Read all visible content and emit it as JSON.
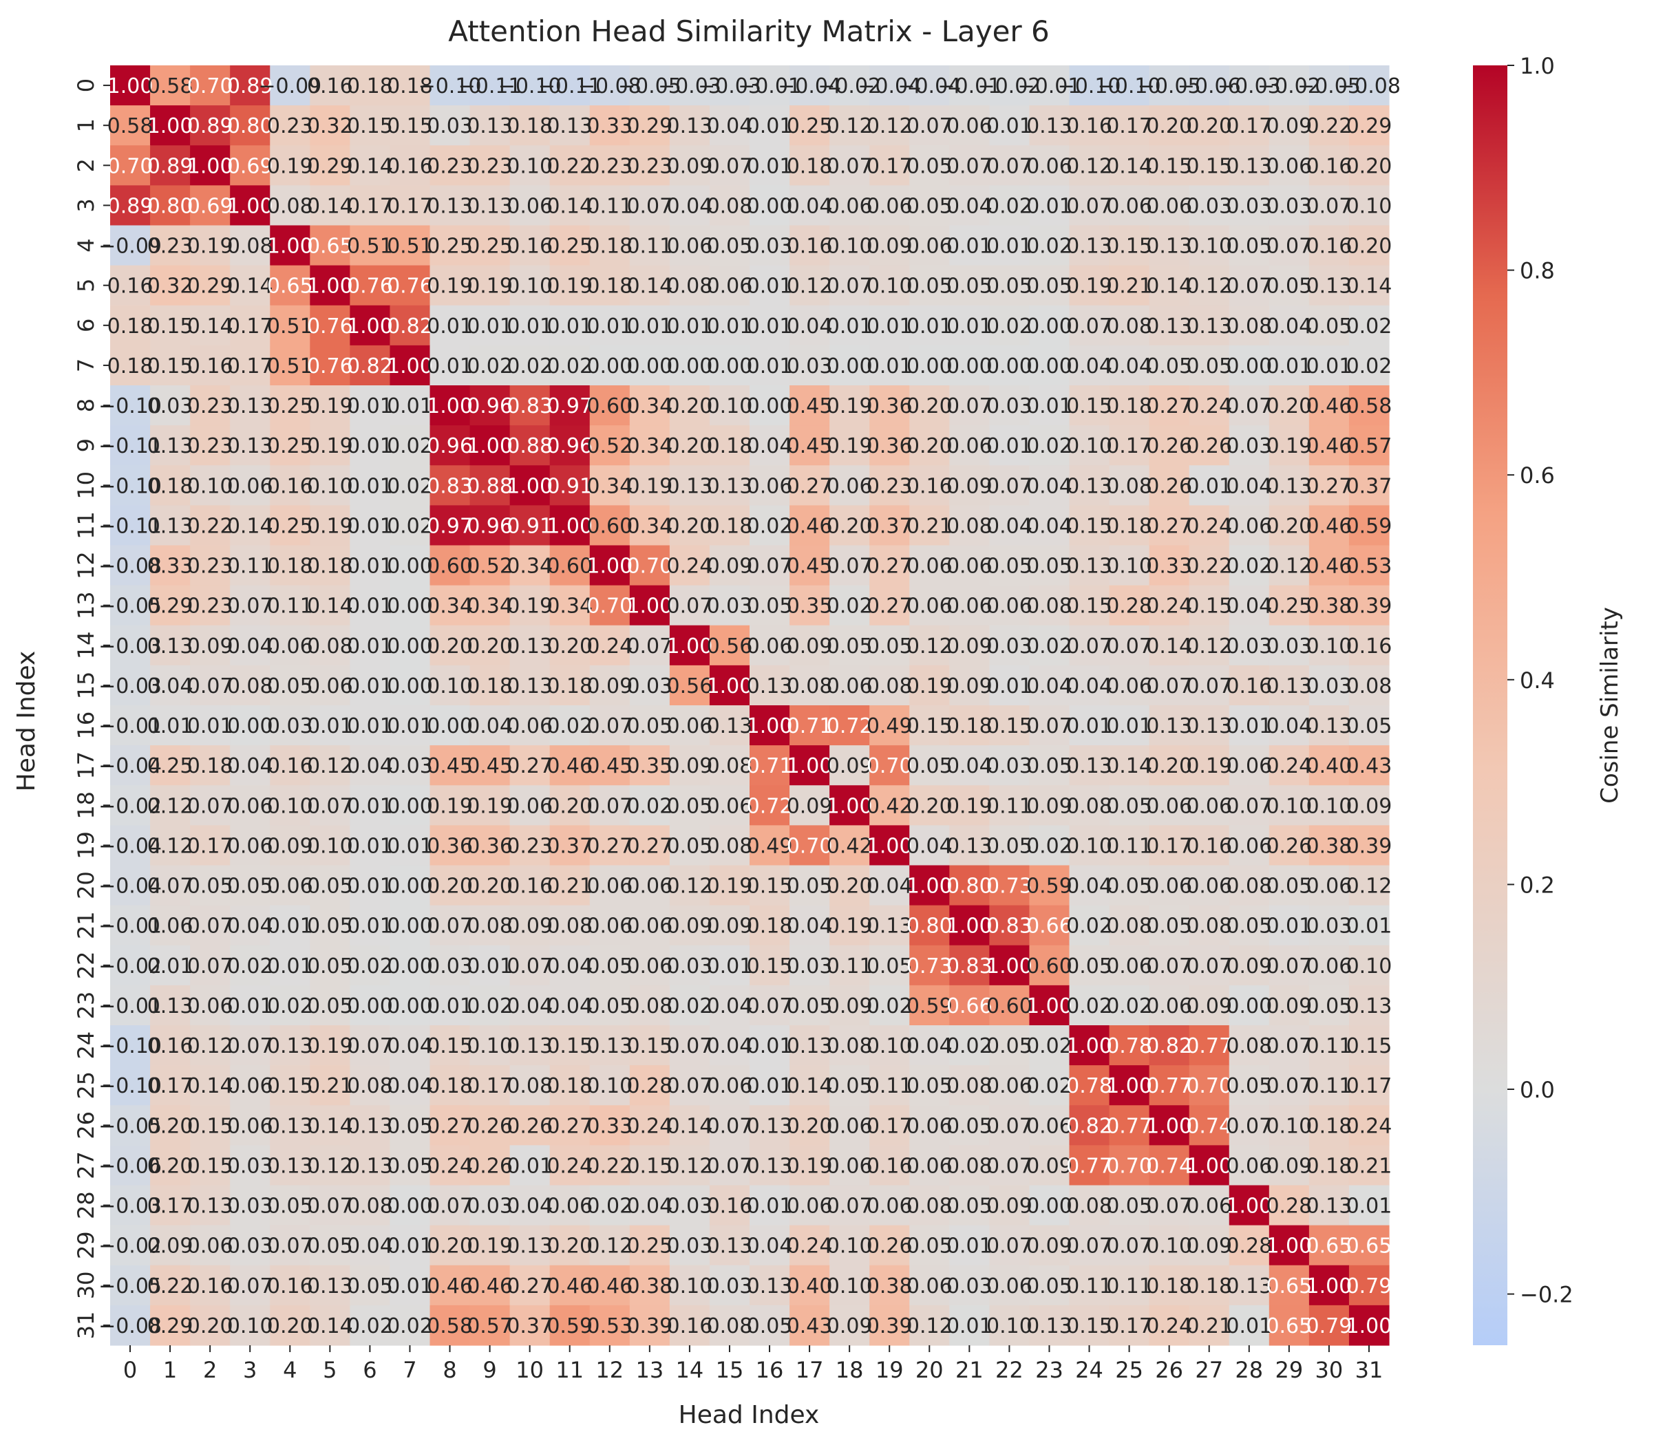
{
  "chart_data": {
    "type": "heatmap",
    "title": "Attention Head Similarity Matrix - Layer 6",
    "xlabel": "Head Index",
    "ylabel": "Head Index",
    "x_categories": [
      "0",
      "1",
      "2",
      "3",
      "4",
      "5",
      "6",
      "7",
      "8",
      "9",
      "10",
      "11",
      "12",
      "13",
      "14",
      "15",
      "16",
      "17",
      "18",
      "19",
      "20",
      "21",
      "22",
      "23",
      "24",
      "25",
      "26",
      "27",
      "28",
      "29",
      "30",
      "31"
    ],
    "y_categories": [
      "0",
      "1",
      "2",
      "3",
      "4",
      "5",
      "6",
      "7",
      "8",
      "9",
      "10",
      "11",
      "12",
      "13",
      "14",
      "15",
      "16",
      "17",
      "18",
      "19",
      "20",
      "21",
      "22",
      "23",
      "24",
      "25",
      "26",
      "27",
      "28",
      "29",
      "30",
      "31"
    ],
    "colorbar": {
      "label": "Cosine Similarity",
      "range": [
        -0.25,
        1.0
      ],
      "ticks": [
        "1.0",
        "0.8",
        "0.6",
        "0.4",
        "0.2",
        "0.0",
        "−0.2"
      ],
      "tick_values": [
        1.0,
        0.8,
        0.6,
        0.4,
        0.2,
        0.0,
        -0.2
      ],
      "colormap": "coolwarm",
      "color_low": "#b5cdf8",
      "color_mid": "#dcdddd",
      "color_high": "#b40426"
    },
    "values": [
      [
        1.0,
        0.58,
        0.7,
        0.89,
        -0.09,
        0.16,
        0.18,
        0.18,
        -0.1,
        -0.11,
        -0.1,
        -0.11,
        -0.08,
        -0.05,
        -0.03,
        -0.03,
        -0.01,
        -0.04,
        -0.02,
        -0.04,
        -0.04,
        -0.01,
        -0.02,
        -0.01,
        -0.1,
        -0.1,
        -0.05,
        -0.06,
        -0.03,
        -0.02,
        -0.05,
        -0.076
      ],
      [
        0.58,
        1.0,
        0.89,
        0.8,
        0.23,
        0.32,
        0.15,
        0.15,
        0.03,
        0.13,
        0.18,
        0.13,
        0.33,
        0.29,
        0.13,
        0.04,
        0.01,
        0.25,
        0.12,
        0.12,
        0.07,
        0.06,
        0.01,
        0.13,
        0.16,
        0.17,
        0.2,
        0.2,
        0.17,
        0.09,
        0.22,
        0.292
      ],
      [
        0.7,
        0.89,
        1.0,
        0.69,
        0.19,
        0.29,
        0.14,
        0.16,
        0.23,
        0.23,
        0.1,
        0.22,
        0.23,
        0.23,
        0.09,
        0.07,
        0.01,
        0.18,
        0.07,
        0.17,
        0.05,
        0.07,
        0.07,
        0.06,
        0.12,
        0.14,
        0.15,
        0.15,
        0.13,
        0.06,
        0.16,
        0.201
      ],
      [
        0.89,
        0.8,
        0.69,
        1.0,
        0.08,
        0.14,
        0.17,
        0.17,
        0.13,
        0.13,
        0.06,
        0.14,
        0.11,
        0.07,
        0.04,
        0.08,
        0.0,
        0.04,
        0.06,
        0.06,
        0.05,
        0.04,
        0.02,
        0.01,
        0.07,
        0.06,
        0.06,
        0.03,
        0.03,
        0.03,
        0.07,
        0.098
      ],
      [
        -0.09,
        0.23,
        0.19,
        0.08,
        1.0,
        0.65,
        0.51,
        0.51,
        0.25,
        0.25,
        0.16,
        0.25,
        0.18,
        0.11,
        0.06,
        0.05,
        0.03,
        0.16,
        0.1,
        0.09,
        0.06,
        0.01,
        0.01,
        0.02,
        0.13,
        0.15,
        0.13,
        0.1,
        0.05,
        0.07,
        0.16,
        0.203
      ],
      [
        0.16,
        0.32,
        0.29,
        0.14,
        0.65,
        1.0,
        0.76,
        0.76,
        0.19,
        0.19,
        0.1,
        0.19,
        0.18,
        0.14,
        0.08,
        0.06,
        0.01,
        0.12,
        0.07,
        0.1,
        0.05,
        0.05,
        0.05,
        0.05,
        0.19,
        0.21,
        0.14,
        0.12,
        0.07,
        0.05,
        0.13,
        0.143
      ],
      [
        0.18,
        0.15,
        0.14,
        0.17,
        0.51,
        0.76,
        1.0,
        0.82,
        0.01,
        0.01,
        0.01,
        0.01,
        0.01,
        0.01,
        0.01,
        0.01,
        0.01,
        0.04,
        0.01,
        0.01,
        0.01,
        0.01,
        0.02,
        0.0,
        0.07,
        0.08,
        0.13,
        0.13,
        0.08,
        0.04,
        0.05,
        0.016
      ],
      [
        0.18,
        0.15,
        0.16,
        0.17,
        0.51,
        0.76,
        0.82,
        1.0,
        0.01,
        0.02,
        0.02,
        0.02,
        0.0,
        0.0,
        0.0,
        0.0,
        0.01,
        0.03,
        0.0,
        0.01,
        0.0,
        0.0,
        0.0,
        0.0,
        0.04,
        0.04,
        0.05,
        0.05,
        0.0,
        0.01,
        0.01,
        0.016
      ],
      [
        -0.1,
        0.03,
        0.23,
        0.13,
        0.25,
        0.19,
        0.01,
        0.01,
        1.0,
        0.96,
        0.83,
        0.97,
        0.6,
        0.34,
        0.2,
        0.1,
        0.0,
        0.45,
        0.19,
        0.36,
        0.2,
        0.07,
        0.03,
        0.01,
        0.15,
        0.18,
        0.27,
        0.24,
        0.07,
        0.2,
        0.46,
        0.58
      ],
      [
        -0.11,
        0.13,
        0.23,
        0.13,
        0.25,
        0.19,
        0.01,
        0.02,
        0.96,
        1.0,
        0.88,
        0.96,
        0.52,
        0.34,
        0.2,
        0.18,
        0.04,
        0.45,
        0.19,
        0.36,
        0.2,
        0.06,
        0.01,
        0.02,
        0.1,
        0.17,
        0.26,
        0.26,
        0.03,
        0.19,
        0.46,
        0.57
      ],
      [
        -0.1,
        0.18,
        0.1,
        0.06,
        0.16,
        0.1,
        0.01,
        0.02,
        0.83,
        0.88,
        1.0,
        0.91,
        0.34,
        0.19,
        0.13,
        0.13,
        0.06,
        0.27,
        0.06,
        0.23,
        0.16,
        0.09,
        0.07,
        0.04,
        0.13,
        0.08,
        0.26,
        0.01,
        0.04,
        0.13,
        0.27,
        0.369
      ],
      [
        -0.11,
        0.13,
        0.22,
        0.14,
        0.25,
        0.19,
        0.01,
        0.02,
        0.97,
        0.96,
        0.91,
        1.0,
        0.6,
        0.34,
        0.2,
        0.18,
        0.02,
        0.46,
        0.2,
        0.37,
        0.21,
        0.08,
        0.04,
        0.04,
        0.15,
        0.18,
        0.27,
        0.24,
        0.06,
        0.2,
        0.46,
        0.59
      ],
      [
        -0.08,
        0.33,
        0.23,
        0.11,
        0.18,
        0.18,
        0.01,
        0.0,
        0.6,
        0.52,
        0.34,
        0.6,
        1.0,
        0.7,
        0.24,
        0.09,
        0.07,
        0.45,
        0.07,
        0.27,
        0.06,
        0.06,
        0.05,
        0.05,
        0.13,
        0.1,
        0.33,
        0.22,
        0.02,
        0.12,
        0.46,
        0.527
      ],
      [
        -0.05,
        0.29,
        0.23,
        0.07,
        0.11,
        0.14,
        0.01,
        0.0,
        0.34,
        0.34,
        0.19,
        0.34,
        0.7,
        1.0,
        0.07,
        0.03,
        0.05,
        0.35,
        0.02,
        0.27,
        0.06,
        0.06,
        0.06,
        0.08,
        0.15,
        0.28,
        0.24,
        0.15,
        0.04,
        0.25,
        0.38,
        0.385
      ],
      [
        -0.03,
        0.13,
        0.09,
        0.04,
        0.06,
        0.08,
        0.01,
        0.0,
        0.2,
        0.2,
        0.13,
        0.2,
        0.24,
        0.07,
        1.0,
        0.56,
        0.06,
        0.09,
        0.05,
        0.05,
        0.12,
        0.09,
        0.03,
        0.02,
        0.07,
        0.07,
        0.14,
        0.12,
        0.03,
        0.03,
        0.1,
        0.16
      ],
      [
        -0.03,
        0.04,
        0.07,
        0.08,
        0.05,
        0.06,
        0.01,
        0.0,
        0.1,
        0.18,
        0.13,
        0.18,
        0.09,
        0.03,
        0.56,
        1.0,
        0.13,
        0.08,
        0.06,
        0.08,
        0.19,
        0.09,
        0.01,
        0.04,
        0.04,
        0.06,
        0.07,
        0.07,
        0.16,
        0.13,
        0.03,
        0.08
      ],
      [
        -0.01,
        0.01,
        0.01,
        0.0,
        0.03,
        0.01,
        0.01,
        0.01,
        0.0,
        0.04,
        0.06,
        0.02,
        0.07,
        0.05,
        0.06,
        0.13,
        1.0,
        0.71,
        0.72,
        0.49,
        0.15,
        0.18,
        0.15,
        0.07,
        0.01,
        0.01,
        0.13,
        0.13,
        0.01,
        0.04,
        0.13,
        0.053
      ],
      [
        -0.04,
        0.25,
        0.18,
        0.04,
        0.16,
        0.12,
        0.04,
        0.03,
        0.45,
        0.45,
        0.27,
        0.46,
        0.45,
        0.35,
        0.09,
        0.08,
        0.71,
        1.0,
        0.09,
        0.7,
        0.05,
        0.04,
        0.03,
        0.05,
        0.13,
        0.14,
        0.2,
        0.19,
        0.06,
        0.24,
        0.4,
        0.434
      ],
      [
        -0.02,
        0.12,
        0.07,
        0.06,
        0.1,
        0.07,
        0.01,
        0.0,
        0.19,
        0.19,
        0.06,
        0.2,
        0.07,
        0.02,
        0.05,
        0.06,
        0.72,
        0.09,
        1.0,
        0.42,
        0.2,
        0.19,
        0.11,
        0.09,
        0.08,
        0.05,
        0.06,
        0.06,
        0.07,
        0.1,
        0.1,
        0.093
      ],
      [
        -0.04,
        0.12,
        0.17,
        0.06,
        0.09,
        0.1,
        0.01,
        0.01,
        0.36,
        0.36,
        0.23,
        0.37,
        0.27,
        0.27,
        0.05,
        0.08,
        0.49,
        0.7,
        0.42,
        1.0,
        0.04,
        0.13,
        0.05,
        0.02,
        0.1,
        0.11,
        0.17,
        0.16,
        0.06,
        0.26,
        0.38,
        0.388
      ],
      [
        -0.04,
        0.07,
        0.05,
        0.05,
        0.06,
        0.05,
        0.01,
        0.0,
        0.2,
        0.2,
        0.16,
        0.21,
        0.06,
        0.06,
        0.12,
        0.19,
        0.15,
        0.05,
        0.2,
        0.04,
        1.0,
        0.8,
        0.73,
        0.59,
        0.04,
        0.05,
        0.06,
        0.06,
        0.08,
        0.05,
        0.06,
        0.12
      ],
      [
        -0.01,
        0.06,
        0.07,
        0.04,
        0.01,
        0.05,
        0.01,
        0.0,
        0.07,
        0.08,
        0.09,
        0.08,
        0.06,
        0.06,
        0.09,
        0.09,
        0.18,
        0.04,
        0.19,
        0.13,
        0.8,
        1.0,
        0.83,
        0.66,
        0.02,
        0.08,
        0.05,
        0.08,
        0.05,
        0.01,
        0.03,
        0.006
      ],
      [
        -0.02,
        0.01,
        0.07,
        0.02,
        0.01,
        0.05,
        0.02,
        0.0,
        0.03,
        0.01,
        0.07,
        0.04,
        0.05,
        0.06,
        0.03,
        0.01,
        0.15,
        0.03,
        0.11,
        0.05,
        0.73,
        0.83,
        1.0,
        0.6,
        0.05,
        0.06,
        0.07,
        0.07,
        0.09,
        0.07,
        0.06,
        0.103
      ],
      [
        -0.01,
        0.13,
        0.06,
        0.01,
        0.02,
        0.05,
        0.0,
        0.0,
        0.01,
        0.02,
        0.04,
        0.04,
        0.05,
        0.08,
        0.02,
        0.04,
        0.07,
        0.05,
        0.09,
        0.02,
        0.59,
        0.66,
        0.6,
        1.0,
        0.02,
        0.02,
        0.06,
        0.09,
        0.0,
        0.09,
        0.05,
        0.13
      ],
      [
        -0.1,
        0.16,
        0.12,
        0.07,
        0.13,
        0.19,
        0.07,
        0.04,
        0.15,
        0.1,
        0.13,
        0.15,
        0.13,
        0.15,
        0.07,
        0.04,
        0.01,
        0.13,
        0.08,
        0.1,
        0.04,
        0.02,
        0.05,
        0.02,
        1.0,
        0.78,
        0.82,
        0.77,
        0.08,
        0.07,
        0.11,
        0.147
      ],
      [
        -0.1,
        0.17,
        0.14,
        0.06,
        0.15,
        0.21,
        0.08,
        0.04,
        0.18,
        0.17,
        0.08,
        0.18,
        0.1,
        0.28,
        0.07,
        0.06,
        0.01,
        0.14,
        0.05,
        0.11,
        0.05,
        0.08,
        0.06,
        0.02,
        0.78,
        1.0,
        0.77,
        0.7,
        0.05,
        0.07,
        0.11,
        0.166
      ],
      [
        -0.05,
        0.2,
        0.15,
        0.06,
        0.13,
        0.14,
        0.13,
        0.05,
        0.27,
        0.26,
        0.26,
        0.27,
        0.33,
        0.24,
        0.14,
        0.07,
        0.13,
        0.2,
        0.06,
        0.17,
        0.06,
        0.05,
        0.07,
        0.06,
        0.82,
        0.77,
        1.0,
        0.74,
        0.07,
        0.1,
        0.18,
        0.243
      ],
      [
        -0.06,
        0.2,
        0.15,
        0.03,
        0.13,
        0.12,
        0.13,
        0.05,
        0.24,
        0.26,
        0.01,
        0.24,
        0.22,
        0.15,
        0.12,
        0.07,
        0.13,
        0.19,
        0.06,
        0.16,
        0.06,
        0.08,
        0.07,
        0.09,
        0.77,
        0.7,
        0.74,
        1.0,
        0.06,
        0.09,
        0.18,
        0.214
      ],
      [
        -0.03,
        0.17,
        0.13,
        0.03,
        0.05,
        0.07,
        0.08,
        0.0,
        0.07,
        0.03,
        0.04,
        0.06,
        0.02,
        0.04,
        0.03,
        0.16,
        0.01,
        0.06,
        0.07,
        0.06,
        0.08,
        0.05,
        0.09,
        0.0,
        0.08,
        0.05,
        0.07,
        0.06,
        1.0,
        0.28,
        0.13,
        0.006
      ],
      [
        -0.02,
        0.09,
        0.06,
        0.03,
        0.07,
        0.05,
        0.04,
        0.01,
        0.2,
        0.19,
        0.13,
        0.2,
        0.12,
        0.25,
        0.03,
        0.13,
        0.04,
        0.24,
        0.1,
        0.26,
        0.05,
        0.01,
        0.07,
        0.09,
        0.07,
        0.07,
        0.1,
        0.09,
        0.28,
        1.0,
        0.65,
        0.653
      ],
      [
        -0.05,
        0.22,
        0.16,
        0.07,
        0.16,
        0.13,
        0.05,
        0.01,
        0.46,
        0.46,
        0.27,
        0.46,
        0.46,
        0.38,
        0.1,
        0.03,
        0.13,
        0.4,
        0.1,
        0.38,
        0.06,
        0.03,
        0.06,
        0.05,
        0.11,
        0.11,
        0.18,
        0.18,
        0.13,
        0.65,
        1.0,
        0.79
      ],
      [
        -0.076,
        0.292,
        0.201,
        0.098,
        0.203,
        0.143,
        0.016,
        0.016,
        0.58,
        0.57,
        0.369,
        0.59,
        0.527,
        0.385,
        0.16,
        0.08,
        0.053,
        0.434,
        0.093,
        0.388,
        0.12,
        0.006,
        0.103,
        0.13,
        0.147,
        0.166,
        0.243,
        0.214,
        0.006,
        0.653,
        0.79,
        1.0
      ]
    ]
  }
}
